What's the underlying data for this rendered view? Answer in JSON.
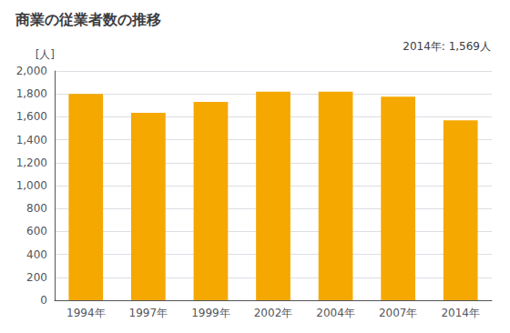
{
  "chart_data": {
    "type": "bar",
    "title": "商業の従業者数の推移",
    "ylabel": "[人]",
    "annotation": "2014年: 1,569人",
    "categories": [
      "1994年",
      "1997年",
      "1999年",
      "2002年",
      "2004年",
      "2007年",
      "2014年"
    ],
    "values": [
      1800,
      1635,
      1730,
      1820,
      1820,
      1775,
      1569
    ],
    "color": "#F5A800",
    "ylim": [
      0,
      2000
    ],
    "yticks": [
      0,
      200,
      400,
      600,
      800,
      {
        "value": 1000,
        "label": "1,000"
      },
      {
        "value": 1200,
        "label": "1,200"
      },
      {
        "value": 1400,
        "label": "1,400"
      },
      {
        "value": 1600,
        "label": "1,600"
      },
      {
        "value": 1800,
        "label": "1,800"
      },
      {
        "value": 2000,
        "label": "2,000"
      }
    ],
    "grid": true
  }
}
